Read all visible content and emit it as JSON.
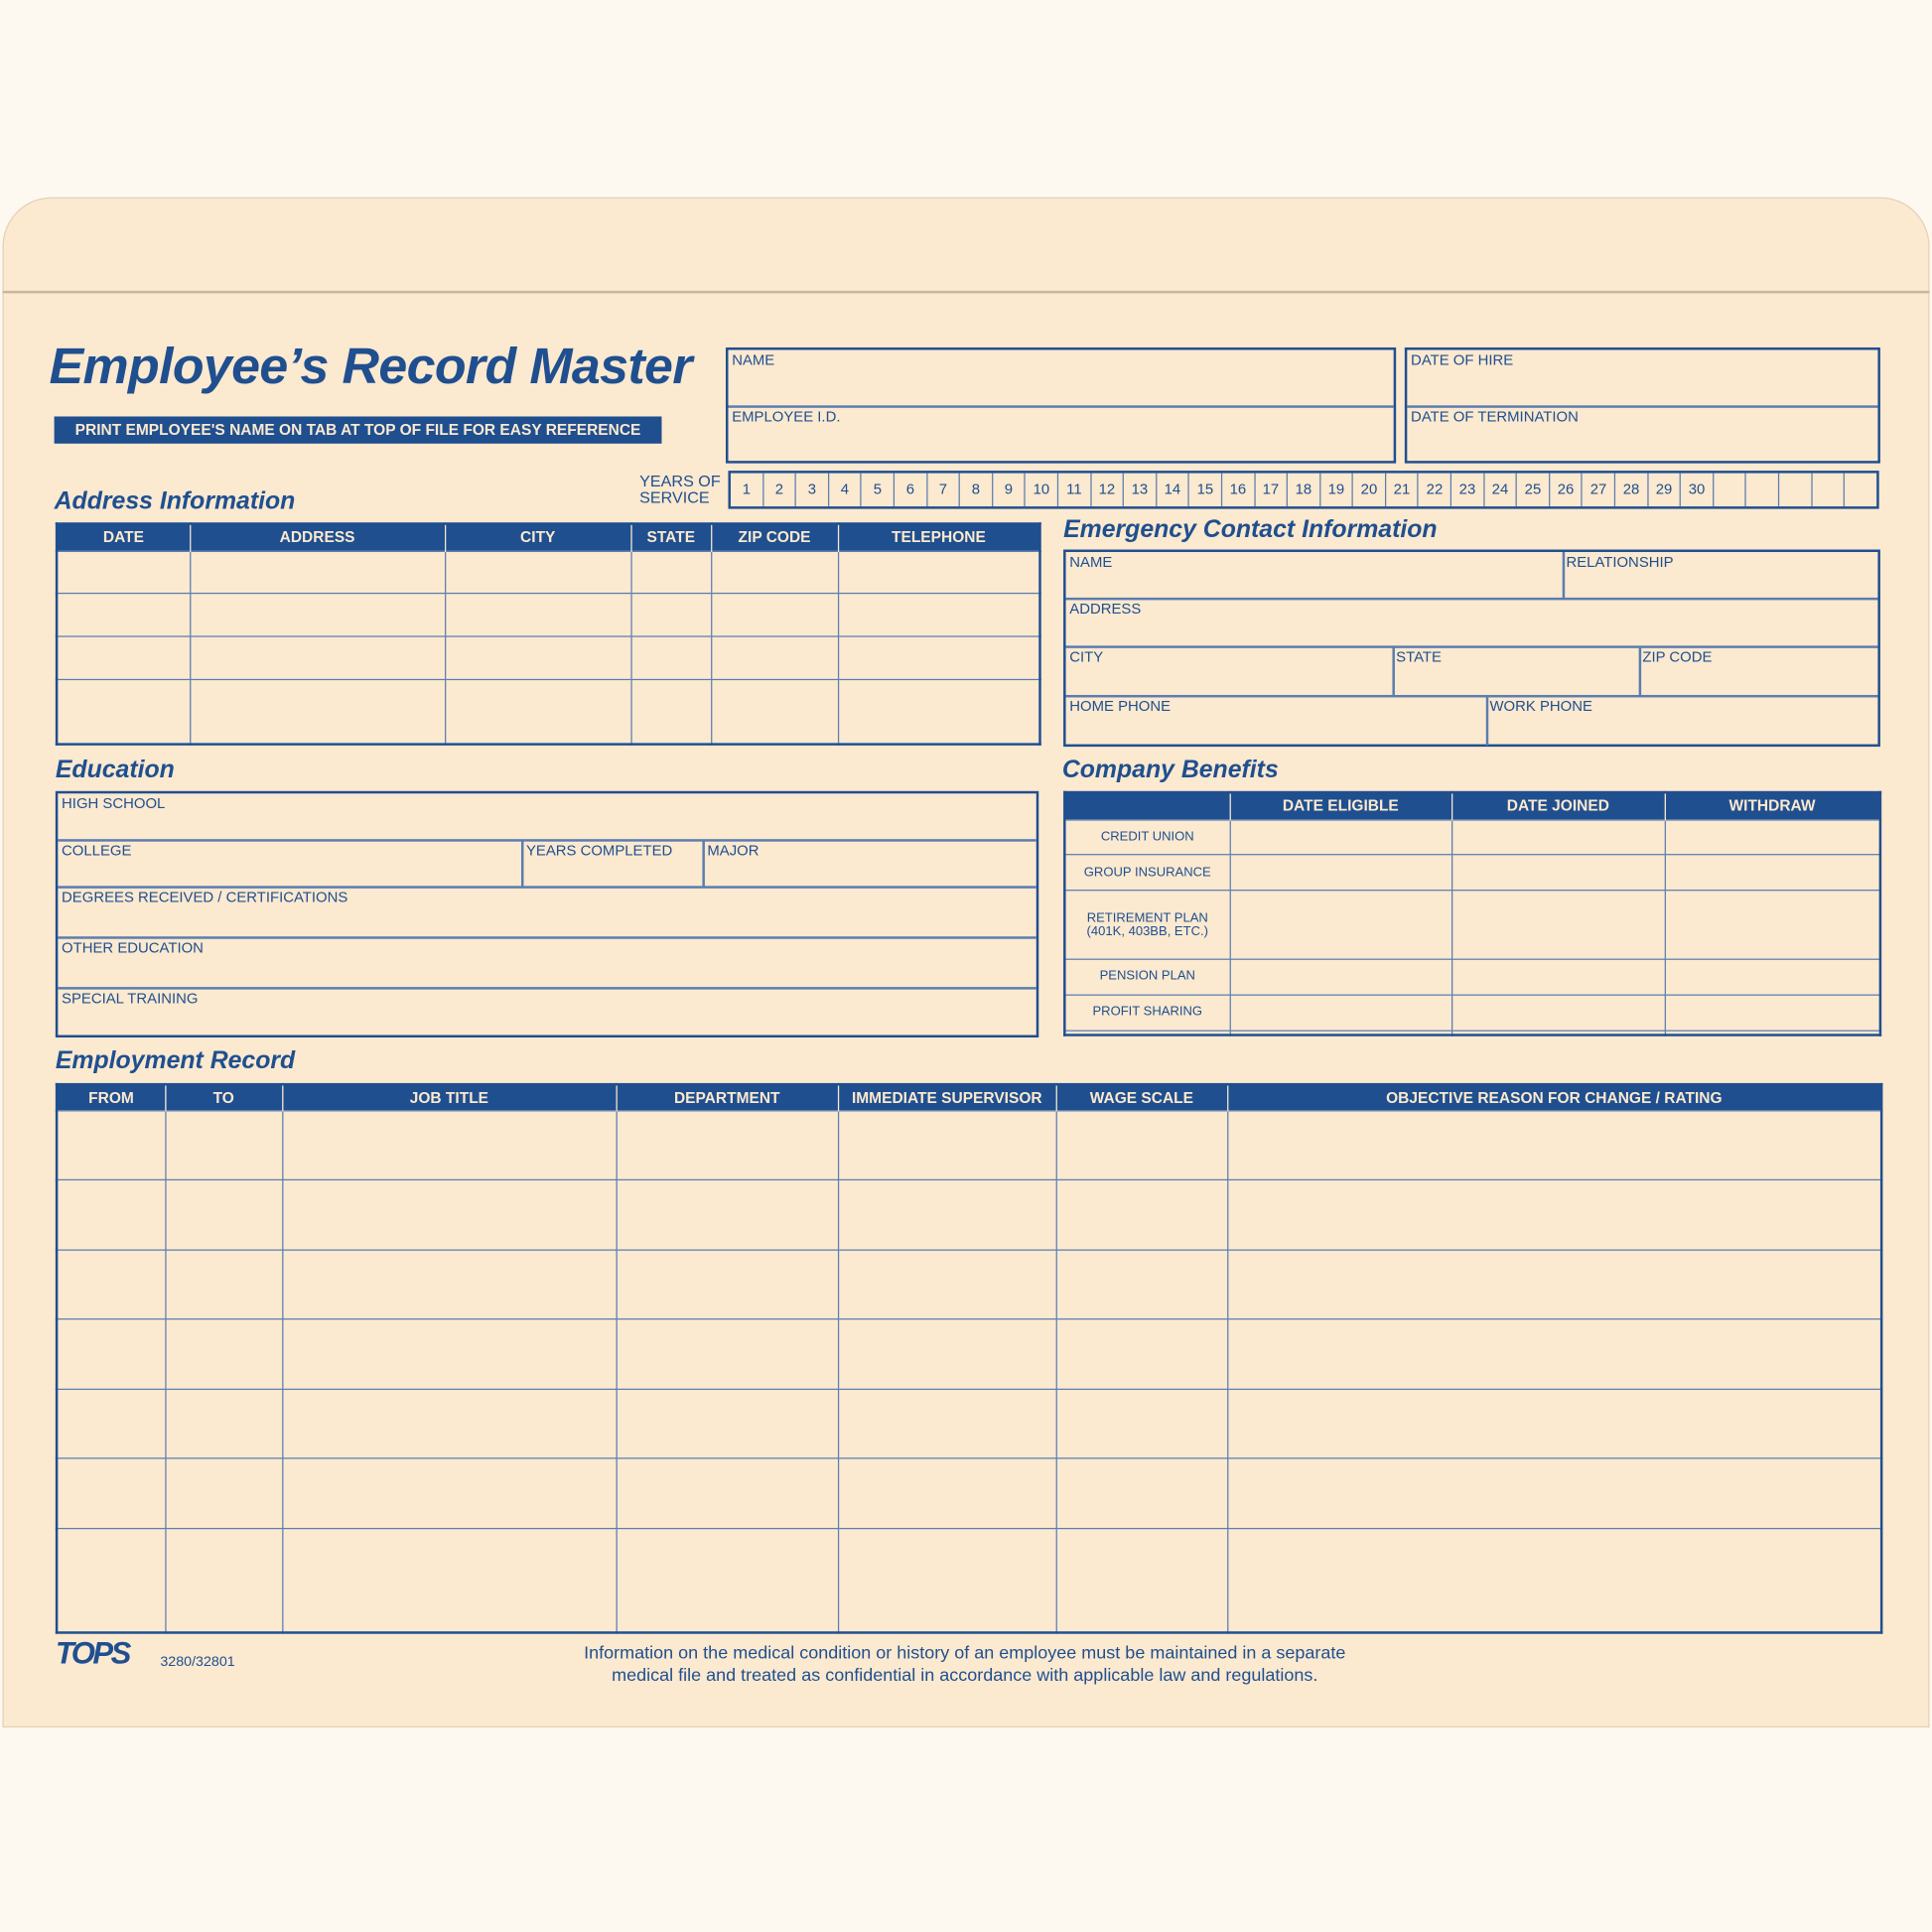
{
  "title": "Employee’s Record Master",
  "banner": "PRINT EMPLOYEE'S NAME ON TAB AT TOP OF FILE FOR EASY REFERENCE",
  "header_fields": {
    "name": "NAME",
    "employee_id": "EMPLOYEE I.D.",
    "date_of_hire": "DATE OF HIRE",
    "date_of_termination": "DATE OF TERMINATION"
  },
  "years_of_service": {
    "label_line1": "YEARS OF",
    "label_line2": "SERVICE",
    "numbers": [
      "1",
      "2",
      "3",
      "4",
      "5",
      "6",
      "7",
      "8",
      "9",
      "10",
      "11",
      "12",
      "13",
      "14",
      "15",
      "16",
      "17",
      "18",
      "19",
      "20",
      "21",
      "22",
      "23",
      "24",
      "25",
      "26",
      "27",
      "28",
      "29",
      "30",
      "",
      "",
      "",
      "",
      ""
    ]
  },
  "address": {
    "heading": "Address Information",
    "columns": [
      "DATE",
      "ADDRESS",
      "CITY",
      "STATE",
      "ZIP CODE",
      "TELEPHONE"
    ],
    "row_count": 4
  },
  "emergency": {
    "heading": "Emergency Contact Information",
    "name": "NAME",
    "relationship": "RELATIONSHIP",
    "address": "ADDRESS",
    "city": "CITY",
    "state": "STATE",
    "zip": "ZIP CODE",
    "home_phone": "HOME PHONE",
    "work_phone": "WORK PHONE"
  },
  "education": {
    "heading": "Education",
    "high_school": "HIGH SCHOOL",
    "college": "COLLEGE",
    "years_completed": "YEARS COMPLETED",
    "major": "MAJOR",
    "degrees": "DEGREES RECEIVED / CERTIFICATIONS",
    "other": "OTHER EDUCATION",
    "special": "SPECIAL TRAINING"
  },
  "benefits": {
    "heading": "Company Benefits",
    "columns": [
      "",
      "DATE ELIGIBLE",
      "DATE JOINED",
      "WITHDRAW"
    ],
    "rows": [
      "CREDIT UNION",
      "GROUP INSURANCE",
      "RETIREMENT PLAN\n(401K, 403BB, ETC.)",
      "PENSION PLAN",
      "PROFIT SHARING",
      ""
    ]
  },
  "employment": {
    "heading": "Employment Record",
    "columns": [
      "FROM",
      "TO",
      "JOB TITLE",
      "DEPARTMENT",
      "IMMEDIATE SUPERVISOR",
      "WAGE SCALE",
      "OBJECTIVE REASON FOR CHANGE / RATING"
    ],
    "row_count": 7
  },
  "footer": {
    "logo": "TOPS",
    "form_number": "3280/32801",
    "notice_line1": "Information on the medical condition or history of an employee must be maintained in a separate",
    "notice_line2": "medical file and treated as confidential in accordance with applicable law and regulations."
  },
  "colors": {
    "ink": "#1f4f8f",
    "paper": "#fbe9d0"
  }
}
